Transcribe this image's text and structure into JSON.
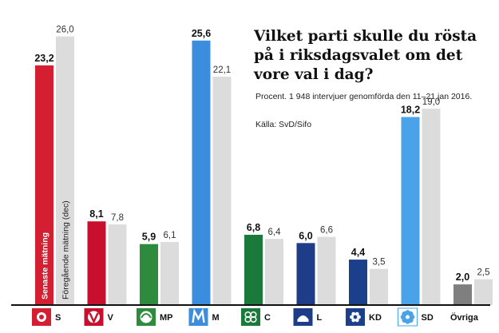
{
  "chart_data": {
    "type": "bar",
    "title": "Vilket parti skulle du rösta på i riksdagsvalet om det vore val i dag?",
    "subtitle": "Procent. 1 948  intervjuer genomförda den 11–21 jan 2016.",
    "source": "Källa: SvD/Sifo",
    "categories": [
      "S",
      "V",
      "MP",
      "M",
      "C",
      "L",
      "KD",
      "SD",
      "Övriga"
    ],
    "series": [
      {
        "name": "Senaste mätning",
        "values": [
          23.2,
          8.1,
          5.9,
          25.6,
          6.8,
          6.0,
          4.4,
          18.2,
          2.0
        ],
        "labels": [
          "23,2",
          "8,1",
          "5,9",
          "25,6",
          "6,8",
          "6,0",
          "4,4",
          "18,2",
          "2,0"
        ]
      },
      {
        "name": "Föregående mätning (dec)",
        "values": [
          26.0,
          7.8,
          6.1,
          22.1,
          6.4,
          6.6,
          3.5,
          19.0,
          2.5
        ],
        "labels": [
          "26,0",
          "7,8",
          "6,1",
          "22,1",
          "6,4",
          "6,6",
          "3,5",
          "19,0",
          "2,5"
        ]
      }
    ],
    "colors": {
      "S": "#d41e32",
      "V": "#c8102e",
      "MP": "#2e8b3e",
      "M": "#3b8ede",
      "C": "#1a7a3a",
      "L": "#1f3c88",
      "KD": "#1c3f8c",
      "SD": "#4aa3e8",
      "Övriga": "#7f7f7f",
      "previous": "#dcdcdc",
      "axis": "#111111"
    },
    "icons": [
      "s-rose-icon",
      "v-party-icon",
      "mp-dandelion-icon",
      "m-logo-icon",
      "c-clover-icon",
      "l-liberal-icon",
      "kd-flower-icon",
      "sd-anemone-icon"
    ],
    "ylim": [
      0,
      27
    ],
    "legend": "vertical text inside first bar pair"
  }
}
